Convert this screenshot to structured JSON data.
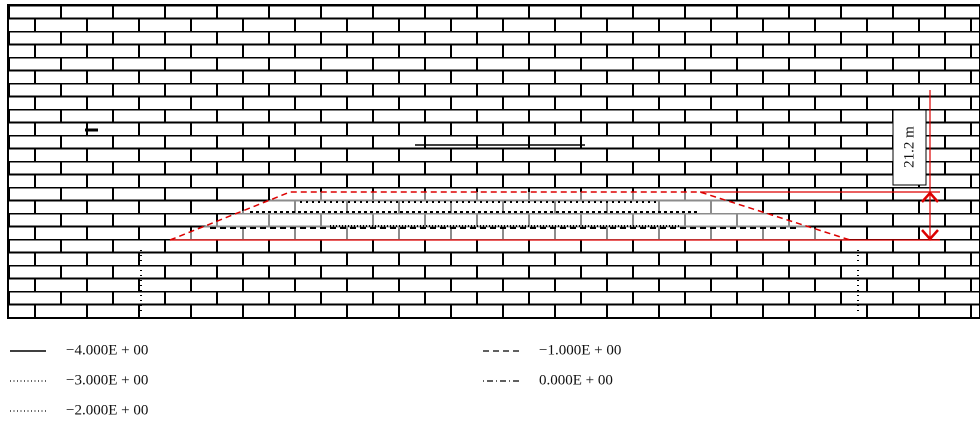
{
  "annotation": "21.2 m",
  "legend": [
    {
      "label": "−4.000E + 00",
      "style": "solid"
    },
    {
      "label": "−3.000E + 00",
      "style": "dotted"
    },
    {
      "label": "−2.000E + 00",
      "style": "dotted"
    },
    {
      "label": "−1.000E + 00",
      "style": "dashed"
    },
    {
      "label": "0.000E + 00",
      "style": "dashdot"
    }
  ]
}
